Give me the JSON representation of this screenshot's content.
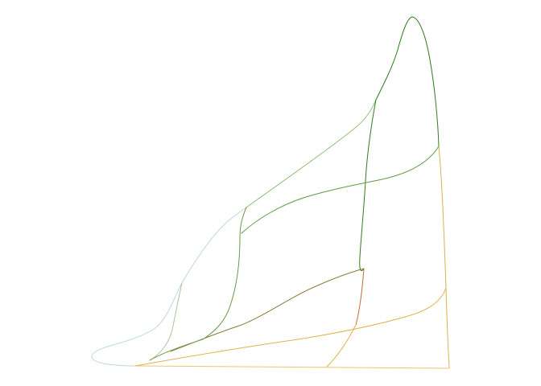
{
  "figure": {
    "description_text": "",
    "palette": {
      "background": "#ffffff",
      "dark_green": "#2f7d1e",
      "mid_green": "#5f9a44",
      "sage_green": "#8fbf7a",
      "olive": "#8a7a3a",
      "pale_blue": "#bcd8dc",
      "gold": "#e2b24a",
      "light_gold": "#efc46a",
      "rust": "#c26a3a"
    }
  }
}
